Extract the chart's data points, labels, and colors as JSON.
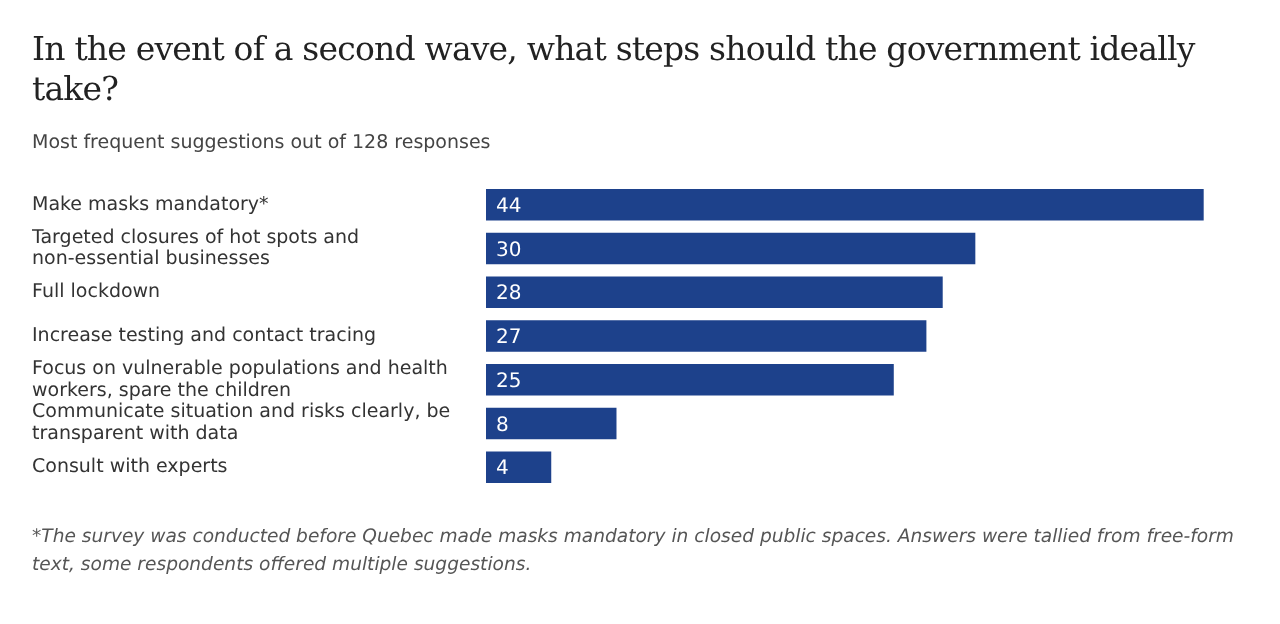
{
  "chart_data": {
    "type": "bar",
    "orientation": "horizontal",
    "title": "In the event of a second wave, what steps should the government ideally take?",
    "subtitle": "Most frequent suggestions out of 128 responses",
    "categories": [
      "Make masks mandatory*",
      "Targeted closures of hot spots and non-essential businesses",
      "Full lockdown",
      "Increase testing and contact tracing",
      "Focus on vulnerable populations and health workers, spare the children",
      "Communicate situation and risks clearly, be transparent with data",
      "Consult with experts"
    ],
    "values": [
      44,
      30,
      28,
      27,
      25,
      8,
      4
    ],
    "color": "#1d418b",
    "data_labels": true,
    "grid": false,
    "legend": false,
    "tick_labels": "y",
    "annotations": [
      "*The survey was conducted before Quebec made masks mandatory in closed public spaces. Answers were tallied from free-form text, some respondents offered multiple suggestions."
    ]
  }
}
